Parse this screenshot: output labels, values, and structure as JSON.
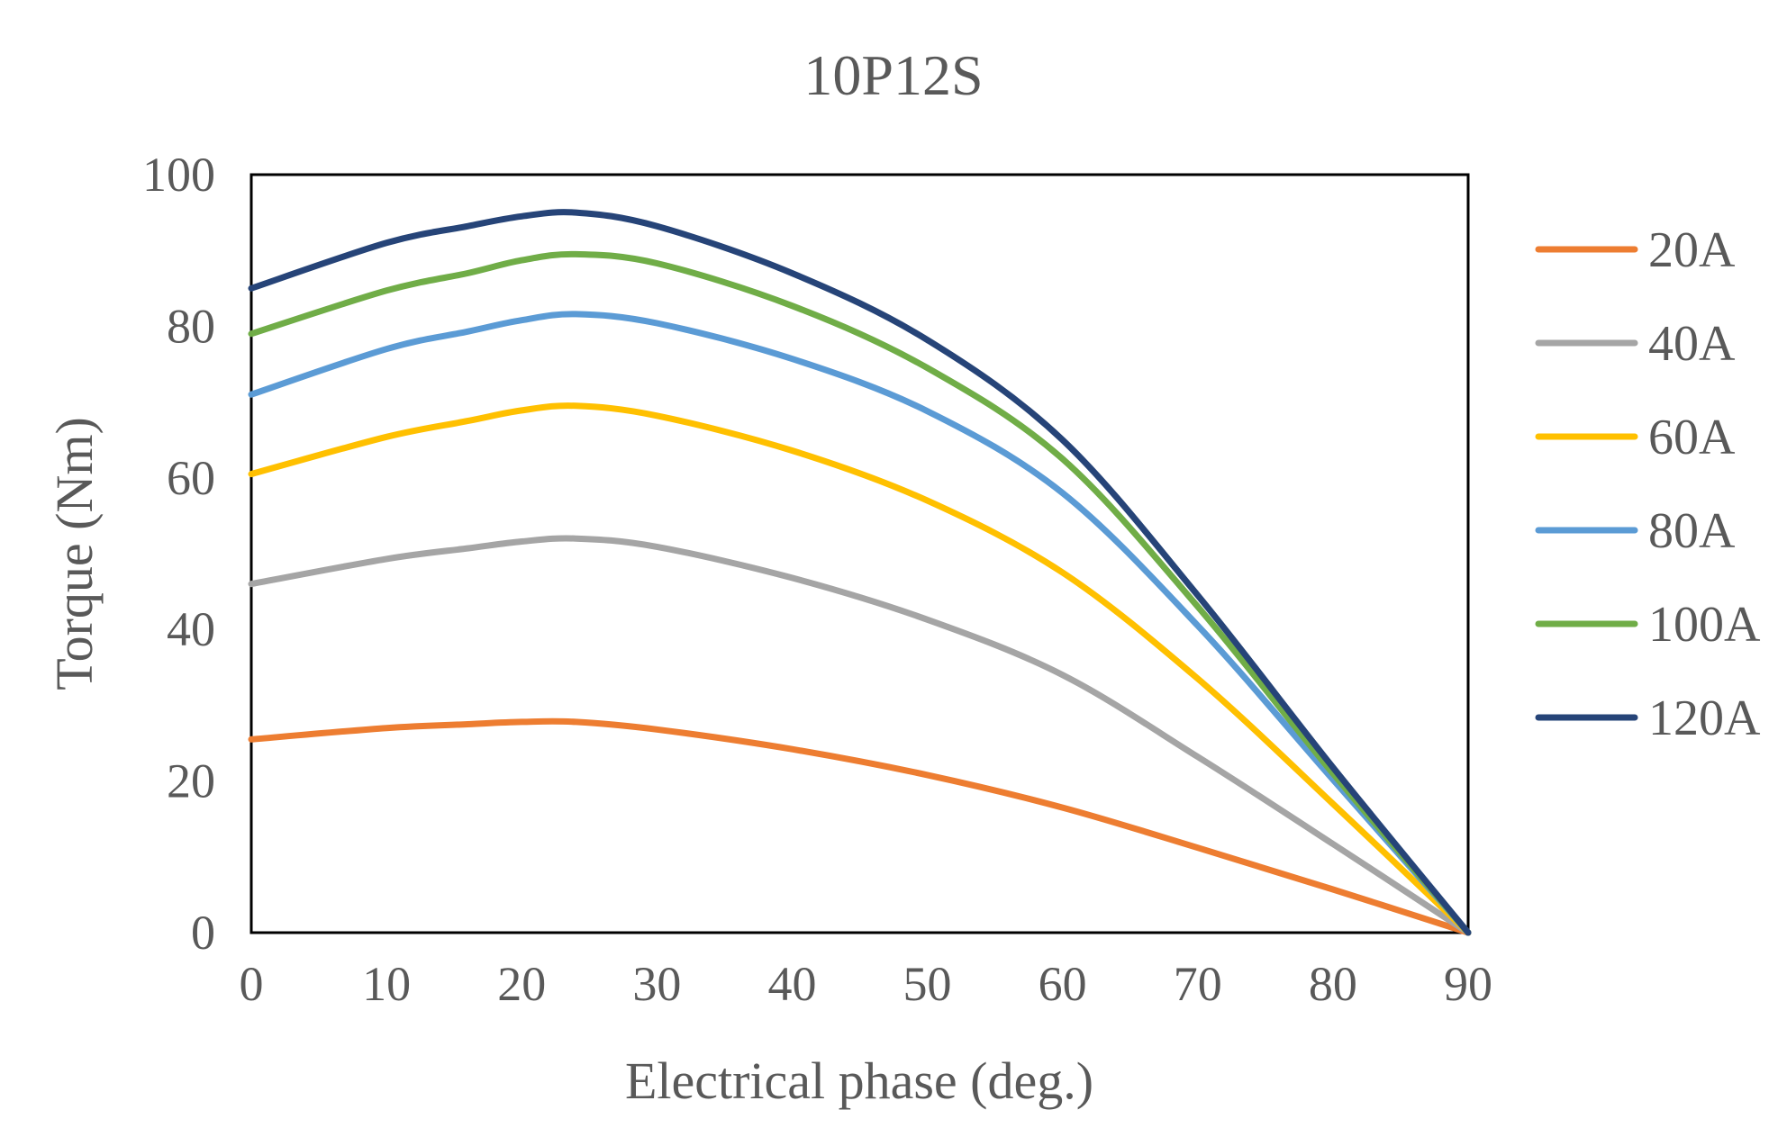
{
  "chart_data": {
    "type": "line",
    "title": "10P12S",
    "xlabel": "Electrical phase (deg.)",
    "ylabel": "Torque (Nm)",
    "xlim": [
      0,
      90
    ],
    "ylim": [
      0,
      100
    ],
    "xticks": [
      0,
      10,
      20,
      30,
      40,
      50,
      60,
      70,
      80,
      90
    ],
    "yticks": [
      0,
      20,
      40,
      60,
      80,
      100
    ],
    "grid": false,
    "legend_position": "right",
    "x": [
      0,
      10,
      16,
      20,
      24,
      30,
      40,
      50,
      60,
      70,
      80,
      90
    ],
    "series": [
      {
        "name": "20A",
        "color": "#ED7D31",
        "values": [
          25.5,
          27.0,
          27.5,
          27.8,
          27.8,
          26.8,
          24.2,
          20.8,
          16.5,
          11.2,
          5.7,
          0
        ]
      },
      {
        "name": "40A",
        "color": "#A5A5A5",
        "values": [
          46.0,
          49.3,
          50.7,
          51.6,
          52.0,
          50.9,
          46.8,
          41.3,
          34.0,
          23.2,
          11.7,
          0
        ]
      },
      {
        "name": "60A",
        "color": "#FFC000",
        "values": [
          60.5,
          65.4,
          67.5,
          68.9,
          69.5,
          68.2,
          63.6,
          57.0,
          47.5,
          33.5,
          17.0,
          0
        ]
      },
      {
        "name": "80A",
        "color": "#5B9BD5",
        "values": [
          71.0,
          77.0,
          79.3,
          80.8,
          81.6,
          80.4,
          75.7,
          68.8,
          58.0,
          40.5,
          20.2,
          0
        ]
      },
      {
        "name": "100A",
        "color": "#70AD47",
        "values": [
          79.0,
          84.7,
          87.0,
          88.7,
          89.5,
          88.3,
          82.7,
          74.5,
          62.5,
          43.0,
          21.0,
          0
        ]
      },
      {
        "name": "120A",
        "color": "#264478",
        "values": [
          85.0,
          91.0,
          93.2,
          94.5,
          95.0,
          93.2,
          87.0,
          78.2,
          65.0,
          44.5,
          21.8,
          0
        ]
      }
    ]
  }
}
